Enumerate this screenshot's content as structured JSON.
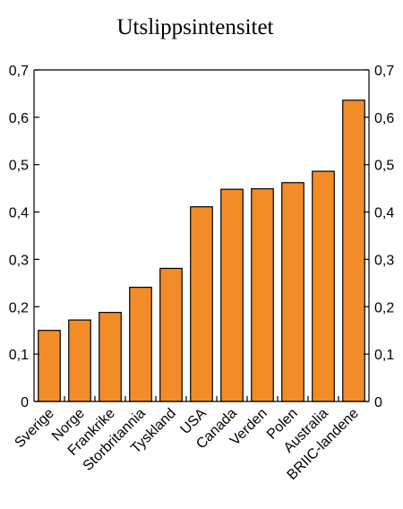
{
  "chart_data": {
    "type": "bar",
    "title": "Utslippsintensitet",
    "xlabel": "",
    "ylabel": "",
    "categories": [
      "Sverige",
      "Norge",
      "Frankrike",
      "Storbritannia",
      "Tyskland",
      "USA",
      "Canada",
      "Verden",
      "Polen",
      "Australia",
      "BRIIC-landene"
    ],
    "values": [
      0.15,
      0.172,
      0.188,
      0.241,
      0.281,
      0.411,
      0.448,
      0.449,
      0.462,
      0.486,
      0.636
    ],
    "ylim": [
      0,
      0.7
    ],
    "yticks": [
      "0",
      "0,1",
      "0,2",
      "0,3",
      "0,4",
      "0,5",
      "0,6",
      "0,7"
    ],
    "y_axis_sides": "left-and-right",
    "grid": false,
    "legend": "none",
    "bar_color": "#f28c28",
    "bar_edge_color": "#000000"
  }
}
